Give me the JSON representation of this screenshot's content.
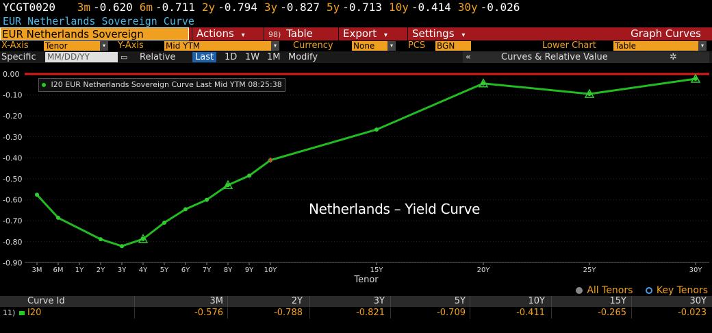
{
  "ticker": {
    "code": "YCGT0020",
    "items": [
      {
        "tenor": "3m",
        "value": "-0.620"
      },
      {
        "tenor": "6m",
        "value": "-0.711"
      },
      {
        "tenor": "2y",
        "value": "-0.794"
      },
      {
        "tenor": "3y",
        "value": "-0.827"
      },
      {
        "tenor": "5y",
        "value": "-0.713"
      },
      {
        "tenor": "10y",
        "value": "-0.414"
      },
      {
        "tenor": "30y",
        "value": "-0.026"
      }
    ]
  },
  "subtitle": "EUR Netherlands Sovereign Curve",
  "toolbar": {
    "curve_selector": "EUR Netherlands Sovereign",
    "actions": "Actions",
    "table_num": "98)",
    "table": "Table",
    "export": "Export",
    "settings": "Settings",
    "graph_curves": "Graph Curves",
    "arrow": "▾"
  },
  "options": {
    "xaxis_label": "X-Axis",
    "xaxis_value": "Tenor",
    "yaxis_label": "Y-Axis",
    "yaxis_value": "Mid YTM",
    "currency_label": "Currency",
    "currency_value": "None",
    "pcs_label": "PCS",
    "pcs_value": "BGN",
    "lower_chart_label": "Lower Chart",
    "lower_chart_value": "Table"
  },
  "date_row": {
    "specific": "Specific",
    "date_placeholder": "MM/DD/YY",
    "relative": "Relative",
    "last": "Last",
    "d1": "1D",
    "w1": "1W",
    "m1": "1M",
    "modify": "Modify",
    "collapse": "«",
    "curves_rv": "Curves & Relative Value",
    "gear": "✲"
  },
  "legend": {
    "label": "I20 EUR Netherlands Sovereign Curve Last Mid YTM 08:25:38"
  },
  "overlay_title": "Netherlands – Yield Curve",
  "tenor_toggle": {
    "all": "All Tenors",
    "key": "Key Tenors"
  },
  "colors": {
    "line": "#22bb22",
    "marker": "#33cc33",
    "zero_line": "#e01818",
    "accent": "#f0a020",
    "header_red": "#a3181c"
  },
  "chart_data": {
    "type": "line",
    "xlabel": "Tenor",
    "ylabel": "",
    "ylim": [
      -0.95,
      0.02
    ],
    "yticks": [
      "0.00",
      "-0.10",
      "-0.20",
      "-0.30",
      "-0.40",
      "-0.50",
      "-0.60",
      "-0.70",
      "-0.80",
      "-0.90"
    ],
    "ytick_values": [
      0.0,
      -0.1,
      -0.2,
      -0.3,
      -0.4,
      -0.5,
      -0.6,
      -0.7,
      -0.8,
      -0.9
    ],
    "x_years": [
      0.25,
      0.5,
      1,
      2,
      3,
      4,
      5,
      6,
      7,
      8,
      9,
      10,
      15,
      20,
      25,
      30
    ],
    "x_labels": [
      "3M",
      "6M",
      "1Y",
      "2Y",
      "3Y",
      "4Y",
      "5Y",
      "6Y",
      "7Y",
      "8Y",
      "9Y",
      "10Y",
      "15Y",
      "20Y",
      "25Y",
      "30Y"
    ],
    "series": [
      {
        "name": "I20 EUR Netherlands Sovereign Curve Last Mid YTM 08:25:38",
        "x": [
          0.25,
          0.5,
          2,
          3,
          4,
          5,
          6,
          7,
          8,
          9,
          10,
          15,
          20,
          25,
          30
        ],
        "values": [
          -0.576,
          -0.686,
          -0.788,
          -0.821,
          -0.787,
          -0.709,
          -0.645,
          -0.6,
          -0.53,
          -0.485,
          -0.411,
          -0.265,
          -0.045,
          -0.095,
          -0.023
        ],
        "key_tenor_markers": [
          4,
          8,
          20,
          25,
          30
        ]
      }
    ],
    "zero_line": 0.0
  },
  "table": {
    "header": {
      "curve_id": "Curve Id",
      "cols": [
        "3M",
        "2Y",
        "3Y",
        "5Y",
        "10Y",
        "15Y",
        "30Y"
      ]
    },
    "rows": [
      {
        "num": "11)",
        "id": "I20",
        "values": [
          "-0.576",
          "-0.788",
          "-0.821",
          "-0.709",
          "-0.411",
          "-0.265",
          "-0.023"
        ]
      }
    ]
  }
}
